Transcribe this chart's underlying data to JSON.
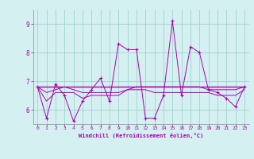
{
  "xlabel": "Windchill (Refroidissement éolien,°C)",
  "background_color": "#d4f0f0",
  "line_color": "#aa00aa",
  "grid_color": "#99cccc",
  "xlim": [
    -0.5,
    23.5
  ],
  "ylim": [
    5.5,
    9.5
  ],
  "yticks": [
    6,
    7,
    8,
    9
  ],
  "xticks": [
    0,
    1,
    2,
    3,
    4,
    5,
    6,
    7,
    8,
    9,
    10,
    11,
    12,
    13,
    14,
    15,
    16,
    17,
    18,
    19,
    20,
    21,
    22,
    23
  ],
  "series1_x": [
    0,
    1,
    2,
    3,
    4,
    5,
    6,
    7,
    8,
    9,
    10,
    11,
    12,
    13,
    14,
    15,
    16,
    17,
    18,
    19,
    20,
    21,
    22,
    23
  ],
  "series1_y": [
    6.8,
    5.7,
    6.9,
    6.5,
    5.6,
    6.3,
    6.7,
    7.1,
    6.3,
    8.3,
    8.1,
    8.1,
    5.7,
    5.7,
    6.5,
    9.1,
    6.5,
    8.2,
    8.0,
    6.7,
    6.6,
    6.4,
    6.1,
    6.8
  ],
  "series2_x": [
    0,
    23
  ],
  "series2_y": [
    6.8,
    6.8
  ],
  "series3_x": [
    0,
    1,
    2,
    3,
    4,
    5,
    6,
    7,
    8,
    9,
    10,
    11,
    12,
    13,
    14,
    15,
    16,
    17,
    18,
    19,
    20,
    21,
    22,
    23
  ],
  "series3_y": [
    6.8,
    6.3,
    6.6,
    6.6,
    6.6,
    6.4,
    6.5,
    6.5,
    6.5,
    6.5,
    6.7,
    6.7,
    6.7,
    6.6,
    6.6,
    6.6,
    6.6,
    6.6,
    6.6,
    6.6,
    6.5,
    6.5,
    6.5,
    6.7
  ],
  "series4_x": [
    0,
    1,
    2,
    3,
    4,
    5,
    6,
    7,
    8,
    9,
    10,
    11,
    12,
    13,
    14,
    15,
    16,
    17,
    18,
    19,
    20,
    21,
    22,
    23
  ],
  "series4_y": [
    6.8,
    6.6,
    6.7,
    6.8,
    6.7,
    6.6,
    6.6,
    6.6,
    6.6,
    6.6,
    6.7,
    6.8,
    6.8,
    6.8,
    6.8,
    6.8,
    6.8,
    6.8,
    6.8,
    6.7,
    6.7,
    6.7,
    6.7,
    6.8
  ]
}
